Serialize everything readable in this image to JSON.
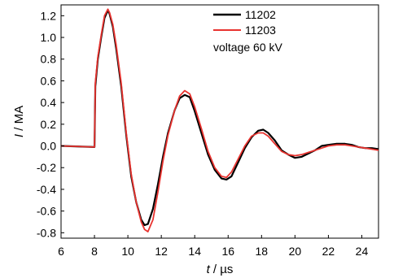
{
  "chart_data": {
    "type": "line",
    "xlabel_symbol": "t",
    "xlabel_unit": " / µs",
    "ylabel_symbol": "I",
    "ylabel_unit": " / MA",
    "xlim": [
      6,
      25
    ],
    "ylim": [
      -0.85,
      1.3
    ],
    "x_ticks": [
      6,
      8,
      10,
      12,
      14,
      16,
      18,
      20,
      22,
      24
    ],
    "y_ticks": [
      1.2,
      1.0,
      0.8,
      0.6,
      0.4,
      0.2,
      0.0,
      -0.2,
      -0.4,
      -0.6,
      -0.8
    ],
    "y_tick_labels": [
      "1.2",
      "1.0",
      "0.8",
      "0.6",
      "0.4",
      "0.2",
      "0.0",
      "-0.2",
      "-0.4",
      "-0.6",
      "-0.8"
    ],
    "grid": false,
    "legend_position": "top-right",
    "annotation": "voltage 60 kV",
    "series": [
      {
        "name": "11202",
        "color": "#000000",
        "x": [
          6.0,
          8.0,
          8.05,
          8.2,
          8.4,
          8.6,
          8.8,
          8.9,
          9.1,
          9.3,
          9.6,
          9.9,
          10.2,
          10.5,
          10.8,
          11.0,
          11.2,
          11.5,
          11.8,
          12.1,
          12.4,
          12.8,
          13.1,
          13.4,
          13.7,
          14.0,
          14.4,
          14.8,
          15.2,
          15.6,
          15.9,
          16.2,
          16.6,
          17.0,
          17.4,
          17.8,
          18.1,
          18.4,
          18.8,
          19.2,
          19.6,
          20.0,
          20.4,
          20.8,
          21.2,
          21.6,
          22.0,
          22.5,
          23.0,
          23.4,
          23.8,
          24.2,
          24.6,
          25.0
        ],
        "y": [
          0.0,
          -0.01,
          0.55,
          0.8,
          1.0,
          1.18,
          1.25,
          1.22,
          1.1,
          0.9,
          0.55,
          0.1,
          -0.28,
          -0.52,
          -0.68,
          -0.73,
          -0.72,
          -0.58,
          -0.35,
          -0.1,
          0.12,
          0.33,
          0.44,
          0.47,
          0.45,
          0.32,
          0.12,
          -0.08,
          -0.22,
          -0.3,
          -0.31,
          -0.28,
          -0.15,
          -0.02,
          0.08,
          0.14,
          0.15,
          0.12,
          0.05,
          -0.04,
          -0.08,
          -0.11,
          -0.1,
          -0.07,
          -0.04,
          0.0,
          0.01,
          0.02,
          0.02,
          0.01,
          -0.01,
          -0.02,
          -0.02,
          -0.03
        ]
      },
      {
        "name": "11203",
        "color": "#e8332f",
        "x": [
          6.0,
          8.0,
          8.05,
          8.2,
          8.4,
          8.6,
          8.8,
          8.9,
          9.1,
          9.3,
          9.6,
          9.9,
          10.2,
          10.5,
          10.8,
          11.0,
          11.2,
          11.5,
          11.8,
          12.1,
          12.4,
          12.8,
          13.1,
          13.4,
          13.7,
          14.0,
          14.4,
          14.8,
          15.2,
          15.6,
          15.9,
          16.2,
          16.6,
          17.0,
          17.4,
          17.8,
          18.1,
          18.4,
          18.8,
          19.2,
          19.6,
          20.0,
          20.4,
          20.8,
          21.2,
          21.6,
          22.0,
          22.5,
          23.0,
          23.4,
          23.8,
          24.2,
          24.6,
          25.0
        ],
        "y": [
          0.0,
          -0.01,
          0.58,
          0.82,
          1.02,
          1.2,
          1.26,
          1.23,
          1.12,
          0.93,
          0.58,
          0.12,
          -0.26,
          -0.52,
          -0.7,
          -0.77,
          -0.79,
          -0.68,
          -0.42,
          -0.14,
          0.1,
          0.33,
          0.46,
          0.51,
          0.48,
          0.36,
          0.16,
          -0.05,
          -0.2,
          -0.28,
          -0.29,
          -0.24,
          -0.12,
          0.0,
          0.09,
          0.12,
          0.12,
          0.09,
          0.02,
          -0.05,
          -0.08,
          -0.09,
          -0.08,
          -0.06,
          -0.04,
          -0.02,
          0.0,
          0.01,
          0.01,
          0.0,
          -0.01,
          -0.02,
          -0.03,
          -0.04
        ]
      }
    ]
  }
}
